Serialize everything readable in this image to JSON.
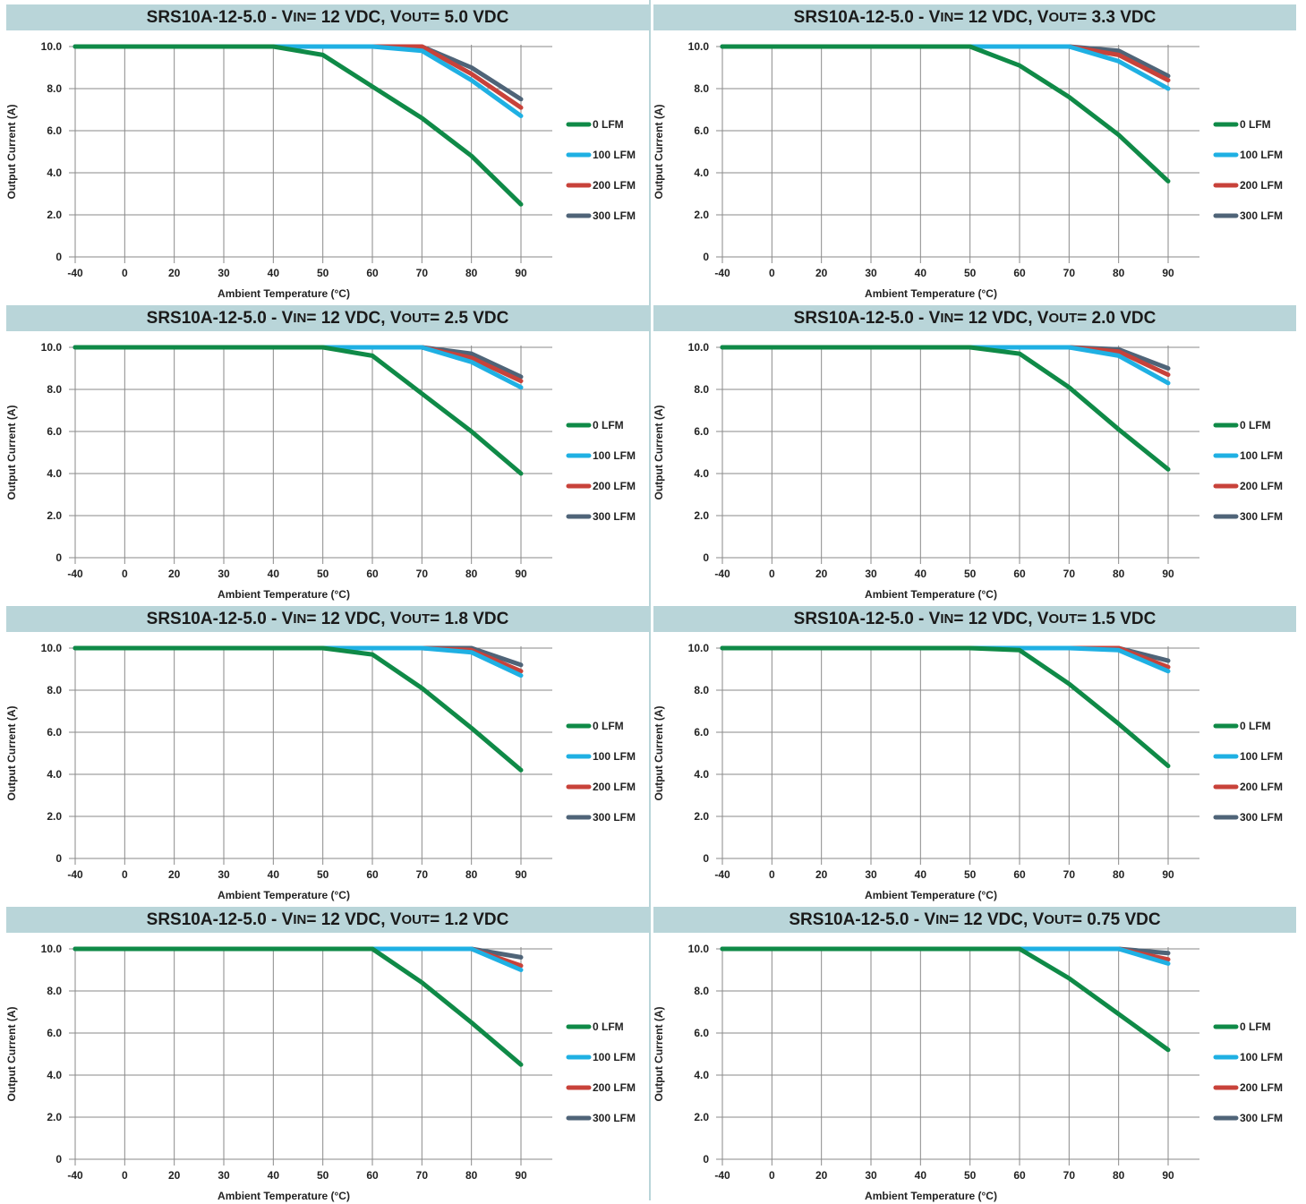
{
  "legend_colors": {
    "0 LFM": "#0f8a47",
    "100 LFM": "#1fb0e3",
    "200 LFM": "#c8423a",
    "300 LFM": "#4f6478"
  },
  "title_bar_color": "#b9d5d9",
  "chart_data": [
    {
      "type": "line",
      "title": {
        "prefix": "SRS10A-12-5.0 - V",
        "in_sub": "IN",
        "mid": " = 12 VDC, V",
        "out_sub": "OUT",
        "suffix": " = 5.0 VDC"
      },
      "xlabel": "Ambient Temperature (°C)",
      "ylabel": "Output Current (A)",
      "x_ticks": [
        "-40",
        "0",
        "20",
        "30",
        "40",
        "50",
        "60",
        "70",
        "80",
        "90"
      ],
      "y_ticks": [
        "0",
        "2.0",
        "4.0",
        "6.0",
        "8.0",
        "10.0"
      ],
      "ylim": [
        0,
        10
      ],
      "grid": true,
      "legend_position": "right",
      "series": [
        {
          "name": "0 LFM",
          "values": [
            10,
            10,
            10,
            10,
            10,
            9.6,
            8.1,
            6.6,
            4.8,
            2.5
          ]
        },
        {
          "name": "100 LFM",
          "values": [
            10,
            10,
            10,
            10,
            10,
            10,
            10,
            9.8,
            8.4,
            6.7
          ]
        },
        {
          "name": "200 LFM",
          "values": [
            10,
            10,
            10,
            10,
            10,
            10,
            10,
            10,
            8.7,
            7.1
          ]
        },
        {
          "name": "300 LFM",
          "values": [
            10,
            10,
            10,
            10,
            10,
            10,
            10,
            10,
            9.0,
            7.5
          ]
        }
      ]
    },
    {
      "type": "line",
      "title": {
        "prefix": "SRS10A-12-5.0 - V",
        "in_sub": "IN",
        "mid": " = 12 VDC, V",
        "out_sub": "OUT",
        "suffix": " = 3.3 VDC"
      },
      "xlabel": "Ambient Temperature (°C)",
      "ylabel": "Output Current (A)",
      "x_ticks": [
        "-40",
        "0",
        "20",
        "30",
        "40",
        "50",
        "60",
        "70",
        "80",
        "90"
      ],
      "y_ticks": [
        "0",
        "2.0",
        "4.0",
        "6.0",
        "8.0",
        "10.0"
      ],
      "ylim": [
        0,
        10
      ],
      "grid": true,
      "legend_position": "right",
      "series": [
        {
          "name": "0 LFM",
          "values": [
            10,
            10,
            10,
            10,
            10,
            10,
            9.1,
            7.6,
            5.8,
            3.6
          ]
        },
        {
          "name": "100 LFM",
          "values": [
            10,
            10,
            10,
            10,
            10,
            10,
            10,
            10,
            9.3,
            8.0
          ]
        },
        {
          "name": "200 LFM",
          "values": [
            10,
            10,
            10,
            10,
            10,
            10,
            10,
            10,
            9.6,
            8.4
          ]
        },
        {
          "name": "300 LFM",
          "values": [
            10,
            10,
            10,
            10,
            10,
            10,
            10,
            10,
            9.8,
            8.6
          ]
        }
      ]
    },
    {
      "type": "line",
      "title": {
        "prefix": "SRS10A-12-5.0 - V",
        "in_sub": "IN",
        "mid": " = 12 VDC, V",
        "out_sub": "OUT",
        "suffix": " = 2.5 VDC"
      },
      "xlabel": "Ambient Temperature (°C)",
      "ylabel": "Output Current (A)",
      "x_ticks": [
        "-40",
        "0",
        "20",
        "30",
        "40",
        "50",
        "60",
        "70",
        "80",
        "90"
      ],
      "y_ticks": [
        "0",
        "2.0",
        "4.0",
        "6.0",
        "8.0",
        "10.0"
      ],
      "ylim": [
        0,
        10
      ],
      "grid": true,
      "legend_position": "right",
      "series": [
        {
          "name": "0 LFM",
          "values": [
            10,
            10,
            10,
            10,
            10,
            10,
            9.6,
            7.8,
            6.0,
            4.0
          ]
        },
        {
          "name": "100 LFM",
          "values": [
            10,
            10,
            10,
            10,
            10,
            10,
            10,
            10,
            9.3,
            8.1
          ]
        },
        {
          "name": "200 LFM",
          "values": [
            10,
            10,
            10,
            10,
            10,
            10,
            10,
            10,
            9.5,
            8.4
          ]
        },
        {
          "name": "300 LFM",
          "values": [
            10,
            10,
            10,
            10,
            10,
            10,
            10,
            10,
            9.7,
            8.6
          ]
        }
      ]
    },
    {
      "type": "line",
      "title": {
        "prefix": "SRS10A-12-5.0 - V",
        "in_sub": "IN",
        "mid": " = 12 VDC, V",
        "out_sub": "OUT",
        "suffix": " = 2.0 VDC"
      },
      "xlabel": "Ambient Temperature (°C)",
      "ylabel": "Output Current (A)",
      "x_ticks": [
        "-40",
        "0",
        "20",
        "30",
        "40",
        "50",
        "60",
        "70",
        "80",
        "90"
      ],
      "y_ticks": [
        "0",
        "2.0",
        "4.0",
        "6.0",
        "8.0",
        "10.0"
      ],
      "ylim": [
        0,
        10
      ],
      "grid": true,
      "legend_position": "right",
      "series": [
        {
          "name": "0 LFM",
          "values": [
            10,
            10,
            10,
            10,
            10,
            10,
            9.7,
            8.1,
            6.1,
            4.2
          ]
        },
        {
          "name": "100 LFM",
          "values": [
            10,
            10,
            10,
            10,
            10,
            10,
            10,
            10,
            9.6,
            8.3
          ]
        },
        {
          "name": "200 LFM",
          "values": [
            10,
            10,
            10,
            10,
            10,
            10,
            10,
            10,
            9.8,
            8.7
          ]
        },
        {
          "name": "300 LFM",
          "values": [
            10,
            10,
            10,
            10,
            10,
            10,
            10,
            10,
            9.9,
            9.0
          ]
        }
      ]
    },
    {
      "type": "line",
      "title": {
        "prefix": "SRS10A-12-5.0 - V",
        "in_sub": "IN",
        "mid": " = 12 VDC, V",
        "out_sub": "OUT",
        "suffix": " = 1.8 VDC"
      },
      "xlabel": "Ambient Temperature (°C)",
      "ylabel": "Output Current (A)",
      "x_ticks": [
        "-40",
        "0",
        "20",
        "30",
        "40",
        "50",
        "60",
        "70",
        "80",
        "90"
      ],
      "y_ticks": [
        "0",
        "2.0",
        "4.0",
        "6.0",
        "8.0",
        "10.0"
      ],
      "ylim": [
        0,
        10
      ],
      "grid": true,
      "legend_position": "right",
      "series": [
        {
          "name": "0 LFM",
          "values": [
            10,
            10,
            10,
            10,
            10,
            10,
            9.7,
            8.1,
            6.2,
            4.2
          ]
        },
        {
          "name": "100 LFM",
          "values": [
            10,
            10,
            10,
            10,
            10,
            10,
            10,
            10,
            9.8,
            8.7
          ]
        },
        {
          "name": "200 LFM",
          "values": [
            10,
            10,
            10,
            10,
            10,
            10,
            10,
            10,
            9.9,
            8.9
          ]
        },
        {
          "name": "300 LFM",
          "values": [
            10,
            10,
            10,
            10,
            10,
            10,
            10,
            10,
            10,
            9.2
          ]
        }
      ]
    },
    {
      "type": "line",
      "title": {
        "prefix": "SRS10A-12-5.0 - V",
        "in_sub": "IN",
        "mid": " = 12 VDC, V",
        "out_sub": "OUT",
        "suffix": " = 1.5 VDC"
      },
      "xlabel": "Ambient Temperature (°C)",
      "ylabel": "Output Current (A)",
      "x_ticks": [
        "-40",
        "0",
        "20",
        "30",
        "40",
        "50",
        "60",
        "70",
        "80",
        "90"
      ],
      "y_ticks": [
        "0",
        "2.0",
        "4.0",
        "6.0",
        "8.0",
        "10.0"
      ],
      "ylim": [
        0,
        10
      ],
      "grid": true,
      "legend_position": "right",
      "series": [
        {
          "name": "0 LFM",
          "values": [
            10,
            10,
            10,
            10,
            10,
            10,
            9.9,
            8.3,
            6.4,
            4.4
          ]
        },
        {
          "name": "100 LFM",
          "values": [
            10,
            10,
            10,
            10,
            10,
            10,
            10,
            10,
            9.9,
            8.9
          ]
        },
        {
          "name": "200 LFM",
          "values": [
            10,
            10,
            10,
            10,
            10,
            10,
            10,
            10,
            10,
            9.1
          ]
        },
        {
          "name": "300 LFM",
          "values": [
            10,
            10,
            10,
            10,
            10,
            10,
            10,
            10,
            10,
            9.4
          ]
        }
      ]
    },
    {
      "type": "line",
      "title": {
        "prefix": "SRS10A-12-5.0 - V",
        "in_sub": "IN",
        "mid": " = 12 VDC, V",
        "out_sub": "OUT",
        "suffix": " = 1.2 VDC"
      },
      "xlabel": "Ambient Temperature (°C)",
      "ylabel": "Output Current (A)",
      "x_ticks": [
        "-40",
        "0",
        "20",
        "30",
        "40",
        "50",
        "60",
        "70",
        "80",
        "90"
      ],
      "y_ticks": [
        "0",
        "2.0",
        "4.0",
        "6.0",
        "8.0",
        "10.0"
      ],
      "ylim": [
        0,
        10
      ],
      "grid": true,
      "legend_position": "right",
      "series": [
        {
          "name": "0 LFM",
          "values": [
            10,
            10,
            10,
            10,
            10,
            10,
            10,
            8.4,
            6.5,
            4.5
          ]
        },
        {
          "name": "100 LFM",
          "values": [
            10,
            10,
            10,
            10,
            10,
            10,
            10,
            10,
            10,
            9.0
          ]
        },
        {
          "name": "200 LFM",
          "values": [
            10,
            10,
            10,
            10,
            10,
            10,
            10,
            10,
            10,
            9.2
          ]
        },
        {
          "name": "300 LFM",
          "values": [
            10,
            10,
            10,
            10,
            10,
            10,
            10,
            10,
            10,
            9.6
          ]
        }
      ]
    },
    {
      "type": "line",
      "title": {
        "prefix": "SRS10A-12-5.0 - V",
        "in_sub": "IN",
        "mid": " = 12 VDC, V",
        "out_sub": "OUT",
        "suffix": " = 0.75 VDC"
      },
      "xlabel": "Ambient Temperature (°C)",
      "ylabel": "Output Current (A)",
      "x_ticks": [
        "-40",
        "0",
        "20",
        "30",
        "40",
        "50",
        "60",
        "70",
        "80",
        "90"
      ],
      "y_ticks": [
        "0",
        "2.0",
        "4.0",
        "6.0",
        "8.0",
        "10.0"
      ],
      "ylim": [
        0,
        10
      ],
      "grid": true,
      "legend_position": "right",
      "series": [
        {
          "name": "0 LFM",
          "values": [
            10,
            10,
            10,
            10,
            10,
            10,
            10,
            8.6,
            6.9,
            5.2
          ]
        },
        {
          "name": "100 LFM",
          "values": [
            10,
            10,
            10,
            10,
            10,
            10,
            10,
            10,
            10,
            9.3
          ]
        },
        {
          "name": "200 LFM",
          "values": [
            10,
            10,
            10,
            10,
            10,
            10,
            10,
            10,
            10,
            9.5
          ]
        },
        {
          "name": "300 LFM",
          "values": [
            10,
            10,
            10,
            10,
            10,
            10,
            10,
            10,
            10,
            9.8
          ]
        }
      ]
    }
  ]
}
